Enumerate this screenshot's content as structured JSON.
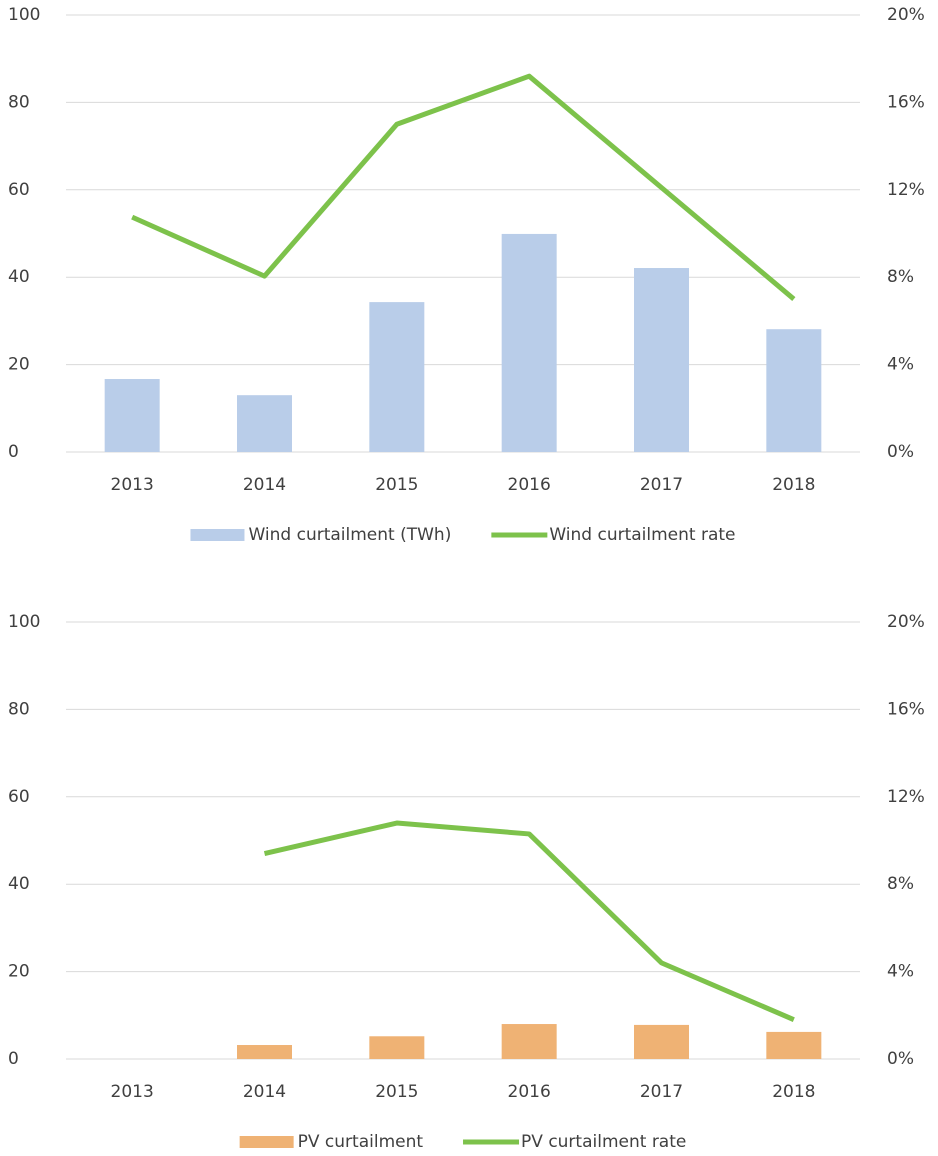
{
  "chart_data": [
    {
      "type": "bar",
      "categories": [
        "2013",
        "2014",
        "2015",
        "2016",
        "2017",
        "2018"
      ],
      "series": [
        {
          "name": "Wind curtailment (TWh)",
          "color": "#b9cde9",
          "type": "bar",
          "values": [
            16.7,
            13.0,
            34.3,
            49.9,
            42.1,
            28.1
          ]
        },
        {
          "name": "Wind curtailment rate",
          "color": "#7dc24b",
          "type": "line",
          "axis": "y2",
          "values": [
            10.75,
            8.05,
            15.0,
            17.2,
            12.1,
            7.0
          ]
        }
      ],
      "ylim": [
        0,
        100
      ],
      "yticks": [
        0,
        20,
        40,
        60,
        80,
        100
      ],
      "y2lim": [
        0,
        20
      ],
      "y2ticks": [
        {
          "value": 0,
          "label": "0%"
        },
        {
          "value": 4,
          "label": "4%"
        },
        {
          "value": 8,
          "label": "8%"
        },
        {
          "value": 12,
          "label": "12%"
        },
        {
          "value": 16,
          "label": "16%"
        },
        {
          "value": 20,
          "label": "20%"
        }
      ],
      "grid": true,
      "legend": "bottom"
    },
    {
      "type": "bar",
      "categories": [
        "2013",
        "2014",
        "2015",
        "2016",
        "2017",
        "2018"
      ],
      "series": [
        {
          "name": "PV curtailment",
          "color": "#efb274",
          "type": "bar",
          "values": [
            null,
            3.2,
            5.2,
            8.0,
            7.8,
            6.2
          ]
        },
        {
          "name": "PV curtailment rate",
          "color": "#7dc24b",
          "type": "line",
          "axis": "y2",
          "values": [
            null,
            9.4,
            10.8,
            10.3,
            4.4,
            1.8
          ]
        }
      ],
      "ylim": [
        0,
        100
      ],
      "yticks": [
        0,
        20,
        40,
        60,
        80,
        100
      ],
      "y2lim": [
        0,
        20
      ],
      "y2ticks": [
        {
          "value": 0,
          "label": "0%"
        },
        {
          "value": 4,
          "label": "4%"
        },
        {
          "value": 8,
          "label": "8%"
        },
        {
          "value": 12,
          "label": "12%"
        },
        {
          "value": 16,
          "label": "16%"
        },
        {
          "value": 20,
          "label": "20%"
        }
      ],
      "grid": true,
      "legend": "bottom"
    }
  ]
}
